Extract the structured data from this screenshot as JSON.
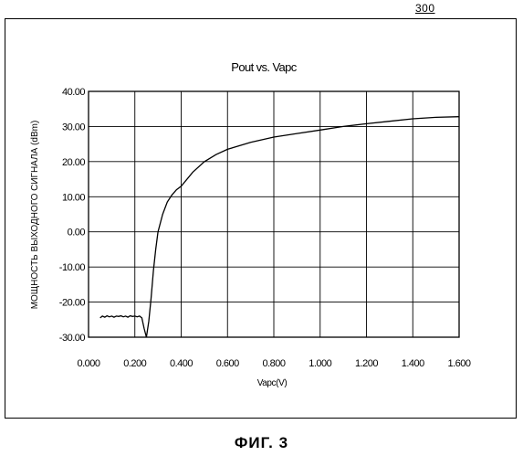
{
  "figure_ref": "300",
  "caption": "ФИГ. 3",
  "chart_data": {
    "type": "line",
    "title": "Pout vs. Vapc",
    "xlabel": "Vapc(V)",
    "ylabel": "МОЩНОСТЬ ВЫХОДНОГО СИГНАЛА (dBm)",
    "xlim": [
      0.0,
      1.6
    ],
    "ylim": [
      -30.0,
      40.0
    ],
    "grid": true,
    "x_ticks": [
      "0.000",
      "0.200",
      "0.400",
      "0.600",
      "0.800",
      "1.000",
      "1.200",
      "1.400",
      "1.600"
    ],
    "y_ticks": [
      "40.00",
      "30.00",
      "20.00",
      "10.00",
      "0.00",
      "-10.00",
      "-20.00",
      "-30.00"
    ],
    "series": [
      {
        "x": [
          0.05,
          0.06,
          0.07,
          0.08,
          0.09,
          0.1,
          0.11,
          0.12,
          0.13,
          0.14,
          0.15,
          0.16,
          0.17,
          0.18,
          0.19,
          0.2,
          0.21,
          0.22,
          0.23,
          0.24,
          0.25,
          0.26,
          0.27,
          0.28,
          0.29,
          0.3,
          0.32,
          0.34,
          0.36,
          0.38,
          0.4,
          0.45,
          0.5,
          0.55,
          0.6,
          0.7,
          0.8,
          0.9,
          1.0,
          1.1,
          1.2,
          1.3,
          1.4,
          1.5,
          1.6
        ],
        "y": [
          -24.5,
          -24.0,
          -24.3,
          -23.9,
          -24.2,
          -24.0,
          -24.3,
          -24.0,
          -24.1,
          -23.9,
          -24.2,
          -24.0,
          -24.3,
          -23.9,
          -24.1,
          -24.0,
          -24.2,
          -24.0,
          -24.5,
          -27.5,
          -30.0,
          -25.5,
          -19.0,
          -11.0,
          -5.0,
          0.0,
          5.0,
          8.5,
          10.5,
          12.0,
          13.0,
          17.0,
          20.0,
          22.0,
          23.5,
          25.5,
          27.0,
          28.0,
          29.0,
          30.0,
          30.8,
          31.5,
          32.2,
          32.6,
          32.8
        ]
      }
    ]
  }
}
